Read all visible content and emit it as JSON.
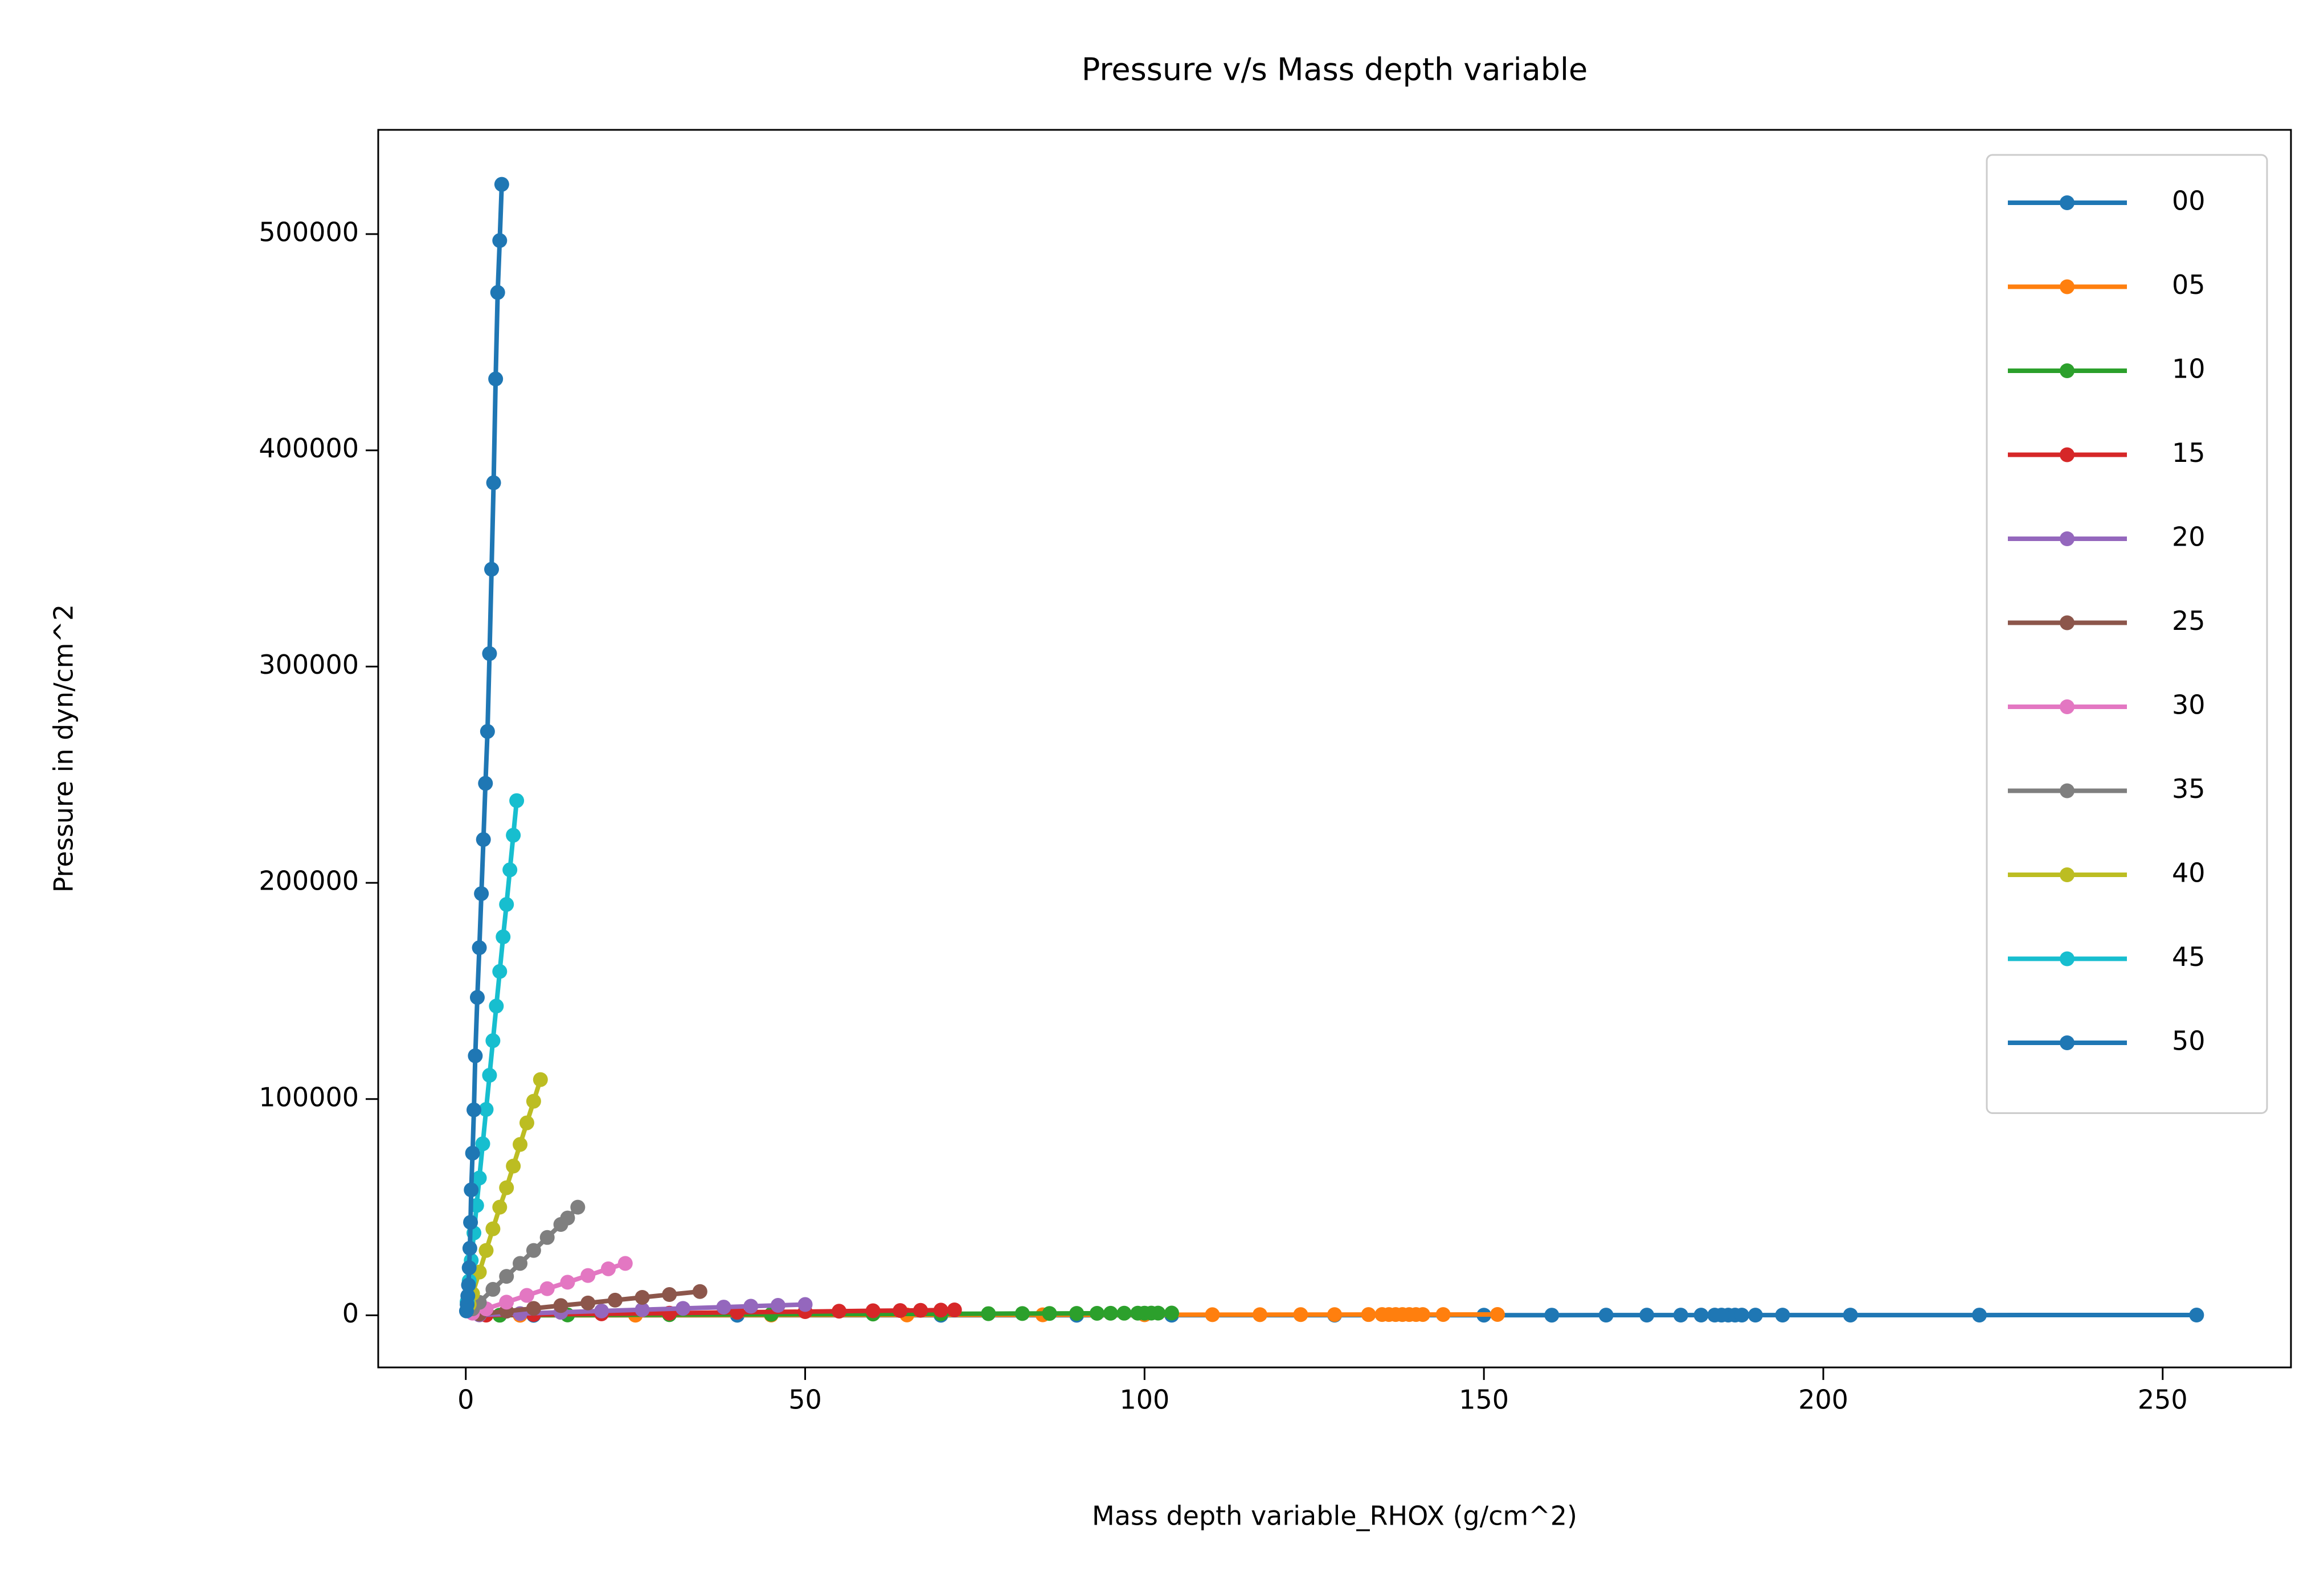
{
  "chart_data": {
    "type": "line",
    "title": "Pressure v/s Mass depth variable",
    "x_label": "Mass depth variable_RHOX (g/cm^2)",
    "y_label": "Pressure in dyn/cm^2",
    "xlim": [
      -12.9,
      268.9
    ],
    "ylim": [
      -24100,
      548200
    ],
    "xticks": [
      0,
      50,
      100,
      150,
      200,
      250
    ],
    "yticks": [
      0,
      100000,
      200000,
      300000,
      400000,
      500000
    ],
    "legend": "upper right",
    "series": [
      {
        "name": "00",
        "color": "#1f77b4",
        "x": [
          10,
          40,
          70,
          90,
          104,
          128,
          150,
          160,
          168,
          174,
          179,
          182,
          184,
          185,
          186,
          187,
          188,
          190,
          194,
          204,
          223,
          255
        ],
        "values": [
          5,
          20,
          35,
          45,
          52,
          64,
          75,
          80,
          84,
          87,
          90,
          91,
          92,
          92,
          93,
          93,
          94,
          95,
          97,
          102,
          111,
          127
        ]
      },
      {
        "name": "05",
        "color": "#ff7f0e",
        "x": [
          8,
          25,
          45,
          65,
          85,
          100,
          110,
          117,
          123,
          128,
          133,
          135,
          136,
          137,
          138,
          139,
          140,
          141,
          144,
          152
        ],
        "values": [
          21,
          65,
          117,
          169,
          221,
          260,
          286,
          304,
          320,
          333,
          346,
          351,
          354,
          356,
          359,
          361,
          364,
          367,
          374,
          395
        ]
      },
      {
        "name": "10",
        "color": "#2ca02c",
        "x": [
          5,
          15,
          30,
          45,
          60,
          70,
          77,
          82,
          86,
          90,
          93,
          95,
          97,
          99,
          100,
          101,
          102,
          104
        ],
        "values": [
          50,
          150,
          300,
          450,
          600,
          700,
          770,
          820,
          860,
          900,
          930,
          950,
          970,
          990,
          1000,
          1010,
          1020,
          1040
        ]
      },
      {
        "name": "15",
        "color": "#d62728",
        "x": [
          3,
          10,
          20,
          30,
          40,
          50,
          55,
          60,
          64,
          67,
          70,
          72
        ],
        "values": [
          100,
          350,
          700,
          1000,
          1400,
          1700,
          1900,
          2100,
          2200,
          2300,
          2400,
          2500
        ]
      },
      {
        "name": "20",
        "color": "#9467bd",
        "x": [
          2,
          8,
          14,
          20,
          26,
          32,
          38,
          42,
          46,
          50
        ],
        "values": [
          200,
          800,
          1400,
          2000,
          2600,
          3200,
          3800,
          4200,
          4600,
          5000
        ]
      },
      {
        "name": "25",
        "color": "#8c564b",
        "x": [
          2,
          6,
          10,
          14,
          18,
          22,
          26,
          30,
          34.5
        ],
        "values": [
          600,
          1900,
          3200,
          4500,
          5700,
          7000,
          8300,
          9600,
          11000
        ]
      },
      {
        "name": "30",
        "color": "#e377c2",
        "x": [
          1,
          3,
          6,
          9,
          12,
          15,
          18,
          21,
          23.5
        ],
        "values": [
          1000,
          3000,
          6100,
          9200,
          12300,
          15300,
          18400,
          21500,
          24000
        ]
      },
      {
        "name": "35",
        "color": "#7f7f7f",
        "x": [
          1,
          2,
          4,
          6,
          8,
          10,
          12,
          14,
          15,
          16.5
        ],
        "values": [
          3000,
          6000,
          12000,
          18000,
          24000,
          30000,
          36000,
          42000,
          45000,
          50000
        ]
      },
      {
        "name": "40",
        "color": "#bcbd22",
        "x": [
          0.5,
          1,
          2,
          3,
          4,
          5,
          6,
          7,
          8,
          9,
          10,
          11
        ],
        "values": [
          5000,
          10000,
          20000,
          30000,
          40000,
          50000,
          59000,
          69000,
          79000,
          89000,
          99000,
          109000
        ]
      },
      {
        "name": "45",
        "color": "#17becf",
        "x": [
          0.2,
          0.5,
          0.8,
          1.2,
          1.6,
          2.0,
          2.5,
          3.0,
          3.5,
          4.0,
          4.5,
          5.0,
          5.5,
          6.0,
          6.5,
          7.0,
          7.5
        ],
        "values": [
          6300,
          15900,
          25400,
          38100,
          50800,
          63500,
          79300,
          95200,
          111000,
          127000,
          143000,
          159000,
          175000,
          190000,
          206000,
          222000,
          238000
        ]
      },
      {
        "name": "50",
        "color": "#1f77b4",
        "x": [
          0.1,
          0.2,
          0.3,
          0.4,
          0.5,
          0.6,
          0.7,
          0.8,
          1.0,
          1.2,
          1.4,
          1.7,
          2.0,
          2.3,
          2.6,
          2.9,
          3.2,
          3.5,
          3.8,
          4.1,
          4.4,
          4.7,
          5.0,
          5.3
        ],
        "values": [
          2000,
          5000,
          9000,
          14000,
          22000,
          31000,
          43000,
          58000,
          75000,
          95000,
          120000,
          147000,
          170000,
          195000,
          220000,
          246000,
          270000,
          306000,
          345000,
          385000,
          433000,
          473000,
          497000,
          523000
        ]
      }
    ]
  }
}
